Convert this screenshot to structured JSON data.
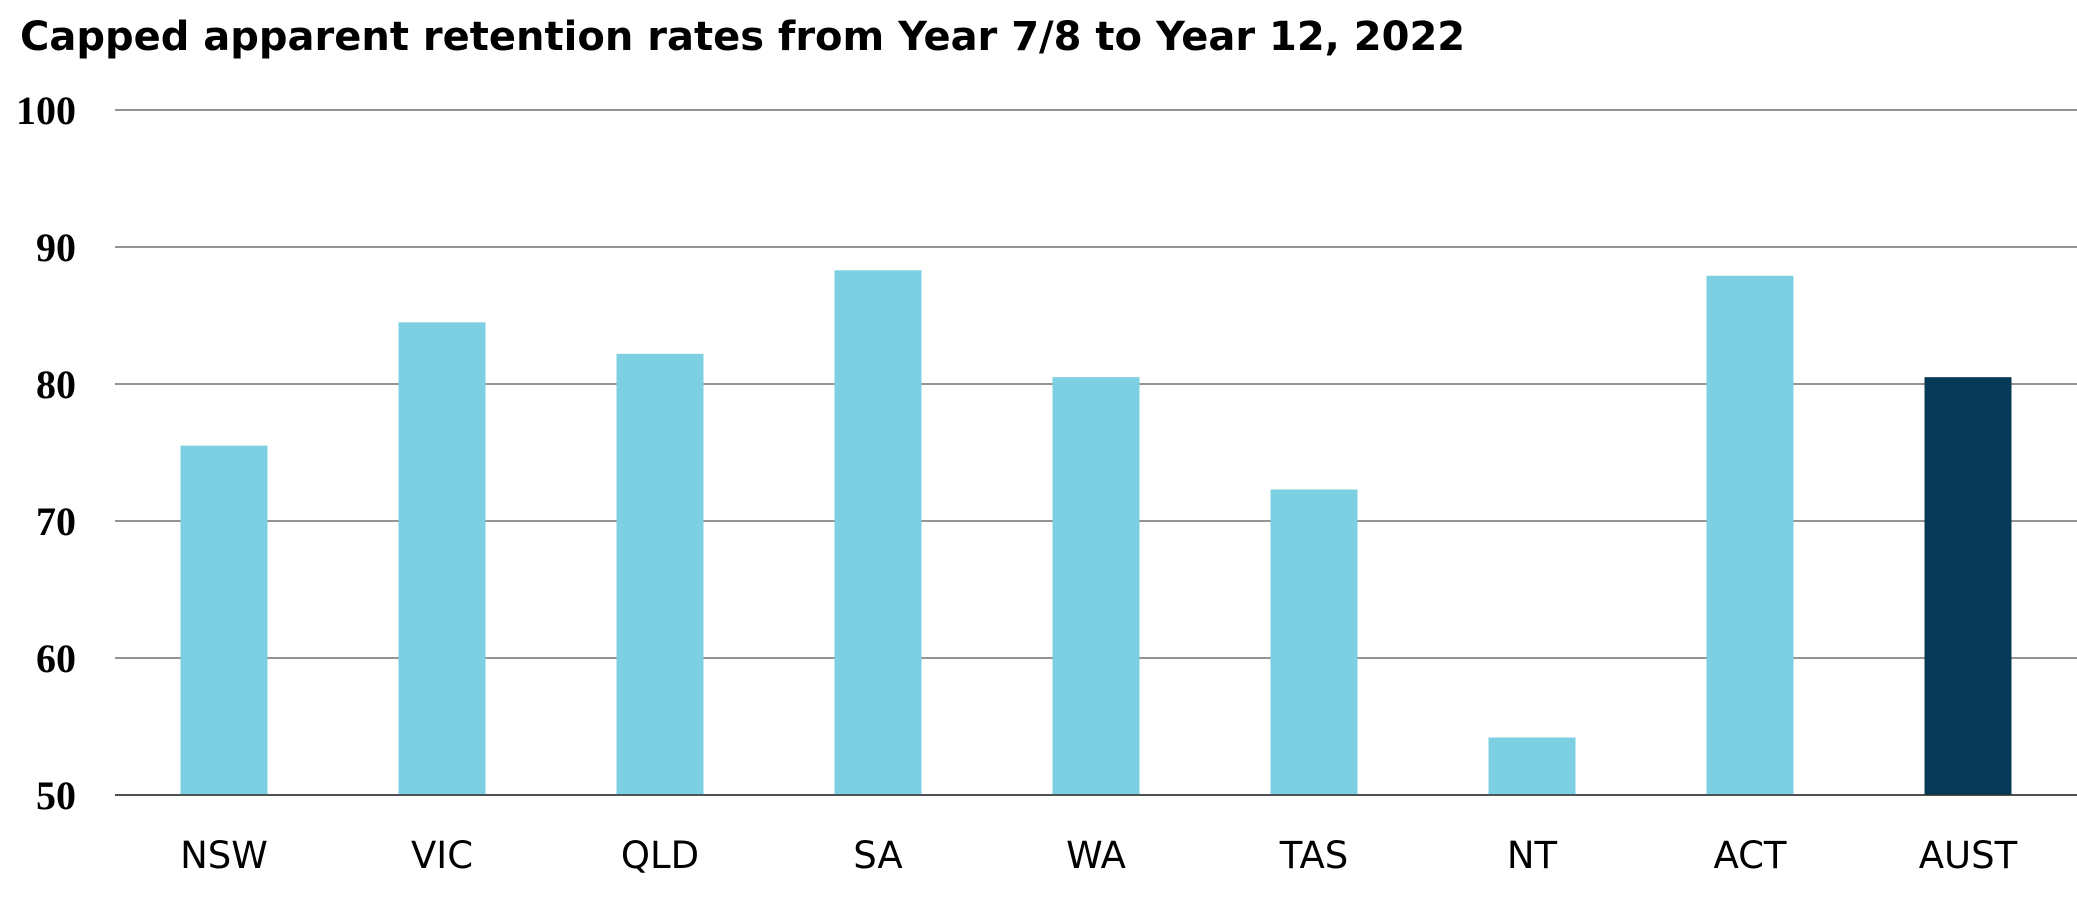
{
  "chart_data": {
    "type": "bar",
    "title": "Capped apparent retention rates from Year 7/8 to Year 12, 2022",
    "categories": [
      "NSW",
      "VIC",
      "QLD",
      "SA",
      "WA",
      "TAS",
      "NT",
      "ACT",
      "AUST"
    ],
    "values": [
      75.5,
      84.5,
      82.2,
      88.3,
      80.5,
      72.3,
      54.2,
      87.9,
      80.5
    ],
    "highlight_category": "AUST",
    "ylim": [
      50,
      100
    ],
    "yticks": [
      50,
      60,
      70,
      80,
      90,
      100
    ],
    "xlabel": "",
    "ylabel": "",
    "grid": true,
    "legend": "none",
    "colors": {
      "bar": "#7dd0e1",
      "highlight": "#063a57",
      "grid": "#555555"
    }
  }
}
